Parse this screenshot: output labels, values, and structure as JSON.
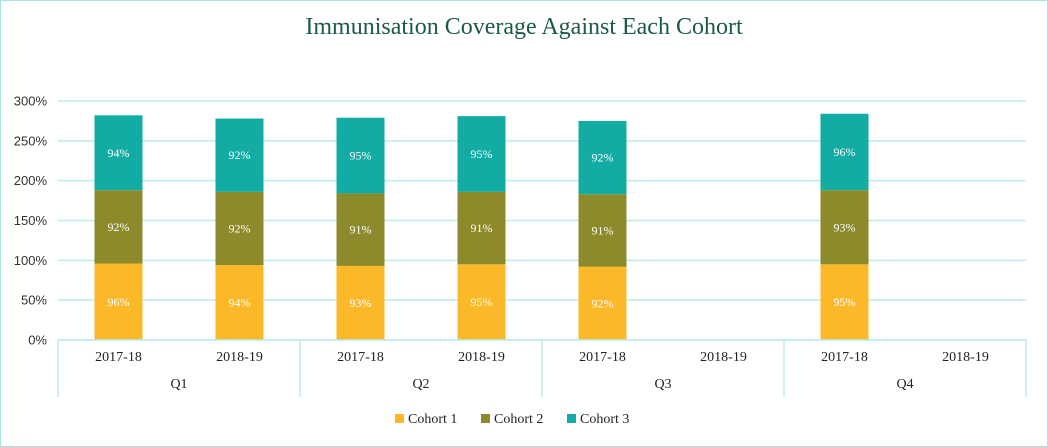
{
  "chart_data": {
    "type": "bar",
    "stacked": true,
    "title": "Immunisation Coverage Against Each Cohort",
    "xlabel": "",
    "ylabel": "",
    "ylim": [
      0,
      300
    ],
    "y_ticks": [
      "0%",
      "50%",
      "100%",
      "150%",
      "200%",
      "250%",
      "300%"
    ],
    "grid": true,
    "legend_position": "bottom",
    "groups": [
      {
        "label": "Q1",
        "categories": [
          "2017-18",
          "2018-19"
        ]
      },
      {
        "label": "Q2",
        "categories": [
          "2017-18",
          "2018-19"
        ]
      },
      {
        "label": "Q3",
        "categories": [
          "2017-18",
          "2018-19"
        ]
      },
      {
        "label": "Q4",
        "categories": [
          "2017-18",
          "2018-19"
        ]
      }
    ],
    "categories": [
      "Q1 2017-18",
      "Q1 2018-19",
      "Q2 2017-18",
      "Q2 2018-19",
      "Q3 2017-18",
      "Q3 2018-19",
      "Q4 2017-18",
      "Q4 2018-19"
    ],
    "series": [
      {
        "name": "Cohort 1",
        "color": "#fbb829",
        "values": [
          96,
          94,
          93,
          95,
          92,
          null,
          95,
          null
        ],
        "labels": [
          "96%",
          "94%",
          "93%",
          "95%",
          "92%",
          "",
          "95%",
          ""
        ]
      },
      {
        "name": "Cohort 2",
        "color": "#8c8a2a",
        "values": [
          92,
          92,
          91,
          91,
          91,
          null,
          93,
          null
        ],
        "labels": [
          "92%",
          "92%",
          "91%",
          "91%",
          "91%",
          "",
          "93%",
          ""
        ]
      },
      {
        "name": "Cohort 3",
        "color": "#12aca5",
        "values": [
          94,
          92,
          95,
          95,
          92,
          null,
          96,
          null
        ],
        "labels": [
          "94%",
          "92%",
          "95%",
          "95%",
          "92%",
          "",
          "96%",
          ""
        ]
      }
    ]
  }
}
